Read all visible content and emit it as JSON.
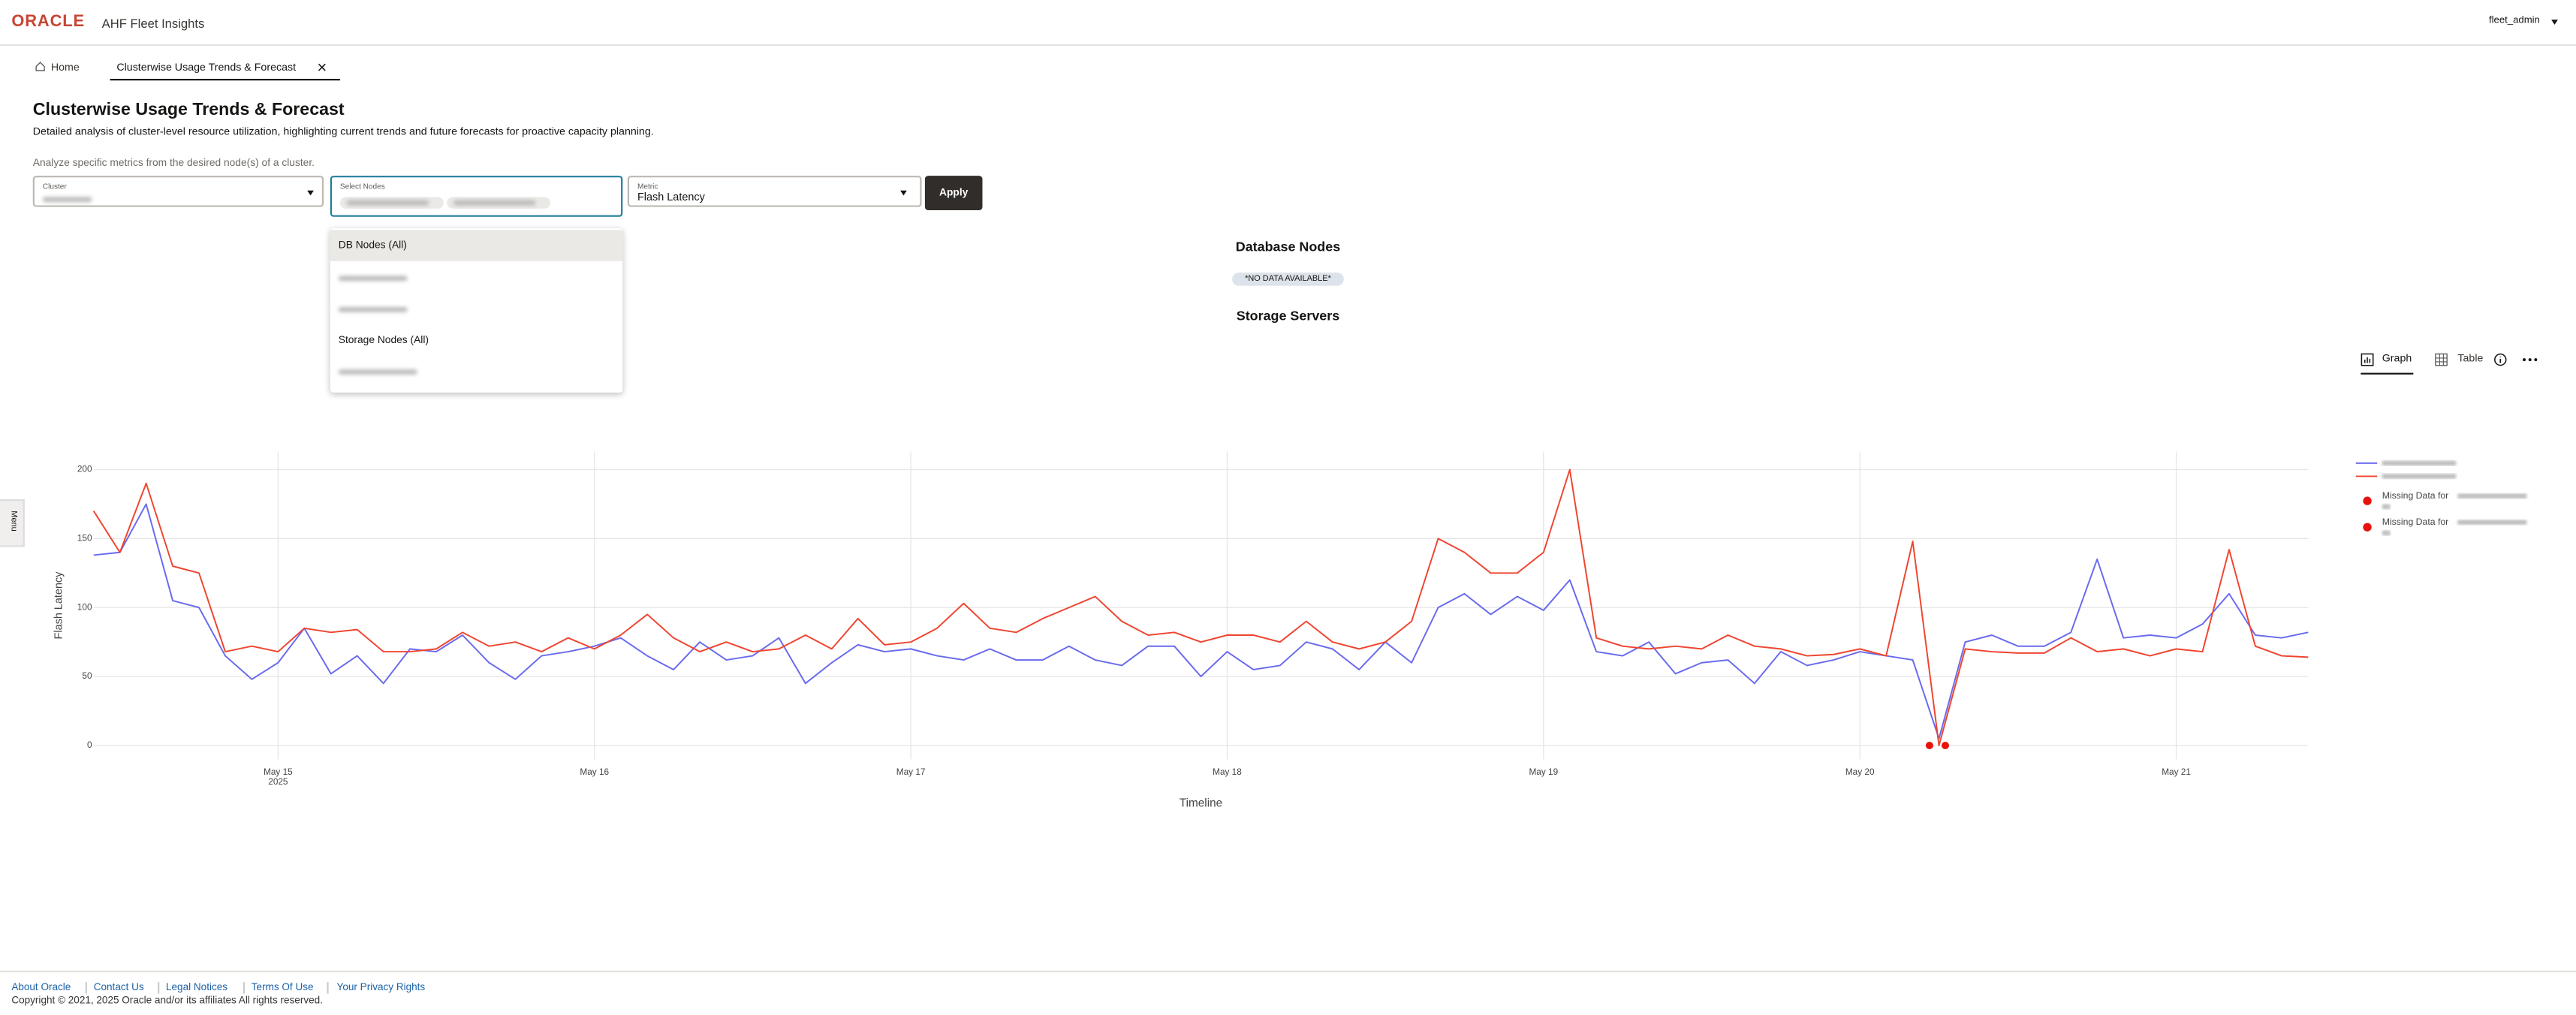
{
  "header": {
    "logo": "ORACLE",
    "app_title": "AHF Fleet Insights",
    "user": "fleet_admin"
  },
  "tabs": [
    "Home",
    "Clusterwise Usage Trends & Forecast"
  ],
  "page": {
    "title": "Clusterwise Usage Trends & Forecast",
    "description": "Detailed analysis of cluster-level resource utilization, highlighting current trends and future forecasts for proactive capacity planning.",
    "hint": "Analyze specific metrics from the desired node(s) of a cluster."
  },
  "form": {
    "cluster_label": "Cluster",
    "nodes_label": "Select Nodes",
    "metric_label": "Metric",
    "metric_value": "Flash Latency",
    "apply": "Apply"
  },
  "dropdown": {
    "options": [
      "DB Nodes (All)",
      "Storage Nodes (All)"
    ]
  },
  "sections": {
    "db_title": "Database Nodes",
    "no_data": "*NO DATA AVAILABLE*",
    "storage_title": "Storage Servers"
  },
  "view_toggle": {
    "graph": "Graph",
    "table": "Table"
  },
  "side_menu": "Menu",
  "chart_data": {
    "type": "line",
    "xlabel": "Timeline",
    "ylabel": "Flash Latency",
    "x": [
      14.417,
      14.5,
      14.583,
      14.667,
      14.75,
      14.833,
      14.917,
      15,
      15.083,
      15.167,
      15.25,
      15.333,
      15.417,
      15.5,
      15.583,
      15.667,
      15.75,
      15.833,
      15.917,
      16,
      16.083,
      16.167,
      16.25,
      16.333,
      16.417,
      16.5,
      16.583,
      16.667,
      16.75,
      16.833,
      16.917,
      17,
      17.083,
      17.167,
      17.25,
      17.333,
      17.417,
      17.5,
      17.583,
      17.667,
      17.75,
      17.833,
      17.917,
      18,
      18.083,
      18.167,
      18.25,
      18.333,
      18.417,
      18.5,
      18.583,
      18.667,
      18.75,
      18.833,
      18.917,
      19,
      19.083,
      19.167,
      19.25,
      19.333,
      19.417,
      19.5,
      19.583,
      19.667,
      19.75,
      19.833,
      19.917,
      20,
      20.083,
      20.167,
      20.25,
      20.333,
      20.417,
      20.5,
      20.583,
      20.667,
      20.75,
      20.833,
      20.917,
      21,
      21.083,
      21.167,
      21.25,
      21.333,
      21.417
    ],
    "series": [
      {
        "mode": "lines",
        "color": "#6a6aee",
        "values": [
          138,
          140,
          175,
          105,
          100,
          65,
          48,
          60,
          85,
          52,
          65,
          45,
          70,
          68,
          80,
          60,
          48,
          65,
          68,
          72,
          78,
          65,
          55,
          75,
          62,
          65,
          78,
          45,
          60,
          73,
          68,
          70,
          65,
          62,
          70,
          62,
          62,
          72,
          62,
          58,
          72,
          72,
          50,
          68,
          55,
          58,
          75,
          70,
          55,
          75,
          60,
          100,
          110,
          95,
          108,
          98,
          120,
          68,
          65,
          75,
          52,
          60,
          62,
          45,
          68,
          58,
          62,
          68,
          65,
          62,
          5,
          75,
          80,
          72,
          72,
          82,
          135,
          78,
          80,
          78,
          88,
          110,
          80,
          78,
          82
        ]
      },
      {
        "mode": "lines",
        "color": "#ef4530",
        "values": [
          170,
          140,
          190,
          130,
          125,
          68,
          72,
          68,
          85,
          82,
          84,
          68,
          68,
          70,
          82,
          72,
          75,
          68,
          78,
          70,
          80,
          95,
          78,
          68,
          75,
          68,
          70,
          80,
          70,
          92,
          73,
          75,
          85,
          103,
          85,
          82,
          92,
          100,
          108,
          90,
          80,
          82,
          75,
          80,
          80,
          75,
          90,
          75,
          70,
          75,
          90,
          150,
          140,
          125,
          125,
          140,
          200,
          78,
          72,
          70,
          72,
          70,
          80,
          72,
          70,
          65,
          66,
          70,
          65,
          148,
          0,
          70,
          68,
          67,
          67,
          78,
          68,
          70,
          65,
          70,
          68,
          142,
          72,
          65,
          64
        ]
      },
      {
        "mode": "markers",
        "name": "Missing Data for",
        "color": "#e8120c",
        "x": [
          20.22
        ],
        "values": [
          0
        ]
      },
      {
        "mode": "markers",
        "name": "Missing Data for",
        "color": "#e8120c",
        "x": [
          20.27
        ],
        "values": [
          0
        ]
      }
    ],
    "xlim": [
      14.417,
      21.417
    ],
    "xticks": [
      {
        "value": 15,
        "label": "May 15"
      },
      {
        "value": 16,
        "label": "May 16"
      },
      {
        "value": 17,
        "label": "May 17"
      },
      {
        "value": 18,
        "label": "May 18"
      },
      {
        "value": 19,
        "label": "May 19"
      },
      {
        "value": 20,
        "label": "May 20"
      },
      {
        "value": 21,
        "label": "May 21"
      }
    ],
    "xtick_year": "2025",
    "ylim": [
      -10,
      213
    ],
    "yticks": [
      0,
      50,
      100,
      150,
      200
    ],
    "grid": true
  },
  "footer": {
    "links": [
      "About Oracle",
      "Contact Us",
      "Legal Notices",
      "Terms Of Use",
      "Your Privacy Rights"
    ],
    "copyright": "Copyright © 2021, 2025 Oracle and/or its affiliates All rights reserved."
  }
}
